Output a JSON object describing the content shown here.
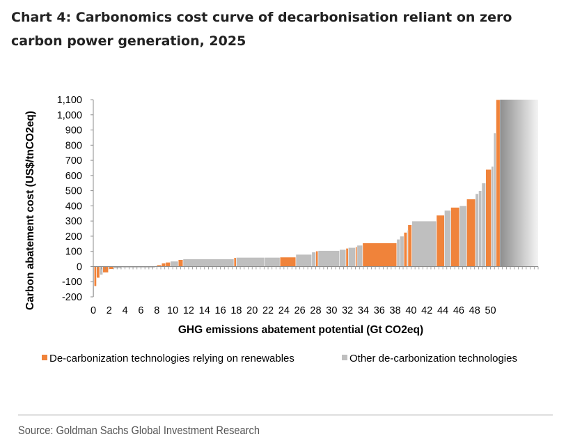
{
  "title": "Chart 4: Carbonomics cost curve of decarbonisation reliant on zero carbon power generation, 2025",
  "source": "Source: Goldman Sachs Global Investment Research",
  "colors": {
    "renewables": "#f0833a",
    "other": "#bfbfbf",
    "axis": "#8c8c8c",
    "text": "#000000"
  },
  "chart_data": {
    "type": "bar",
    "subtype": "cost-curve",
    "title": "Carbonomics cost curve of decarbonisation reliant on zero carbon power generation, 2025",
    "xlabel": "GHG emissions abatement potential  (Gt CO2eq)",
    "ylabel": "Carbon abatement cost (US$/tnCO2eq)",
    "xlim": [
      0,
      56
    ],
    "ylim": [
      -200,
      1100
    ],
    "x_ticks": [
      "0",
      "2",
      "4",
      "6",
      "8",
      "10",
      "12",
      "14",
      "16",
      "18",
      "20",
      "22",
      "24",
      "26",
      "28",
      "30",
      "32",
      "34",
      "36",
      "38",
      "40",
      "42",
      "44",
      "46",
      "48",
      "50"
    ],
    "y_ticks": [
      "1,100",
      "1,000",
      "900",
      "800",
      "700",
      "600",
      "500",
      "400",
      "300",
      "200",
      "100",
      "0",
      "-100",
      "-200"
    ],
    "y_tick_values": [
      1100,
      1000,
      900,
      800,
      700,
      600,
      500,
      400,
      300,
      200,
      100,
      0,
      -100,
      -200
    ],
    "legend": [
      "De-carbonization technologies relying on renewables",
      "Other de-carbonization technologies"
    ],
    "legend_position": "bottom",
    "series": [
      {
        "name": "renewables",
        "bars": [
          [
            0.1,
            0.4,
            -130
          ],
          [
            0.4,
            0.8,
            -75
          ],
          [
            1.2,
            1.9,
            -40
          ],
          [
            2.0,
            2.6,
            -18
          ],
          [
            8.0,
            8.6,
            10
          ],
          [
            8.6,
            9.1,
            22
          ],
          [
            9.1,
            9.7,
            28
          ],
          [
            10.7,
            11.3,
            45
          ],
          [
            17.7,
            18.0,
            58
          ],
          [
            23.5,
            25.5,
            62
          ],
          [
            28.0,
            28.3,
            102
          ],
          [
            31.8,
            32.1,
            120
          ],
          [
            33.0,
            33.2,
            130
          ],
          [
            33.9,
            38.2,
            155
          ],
          [
            39.1,
            39.5,
            225
          ],
          [
            39.6,
            40.1,
            275
          ],
          [
            43.2,
            44.2,
            338
          ],
          [
            45.0,
            46.1,
            390
          ],
          [
            47.0,
            48.1,
            445
          ],
          [
            49.4,
            50.1,
            640
          ],
          [
            50.7,
            51.2,
            1100
          ]
        ]
      },
      {
        "name": "other",
        "bars": [
          [
            0.0,
            0.1,
            -200
          ],
          [
            0.8,
            1.2,
            -55
          ],
          [
            2.6,
            3.6,
            -13
          ],
          [
            3.6,
            7.8,
            -8
          ],
          [
            7.8,
            8.0,
            5
          ],
          [
            9.7,
            10.7,
            35
          ],
          [
            11.3,
            17.7,
            50
          ],
          [
            18.0,
            21.5,
            60
          ],
          [
            21.5,
            23.5,
            60
          ],
          [
            25.5,
            27.5,
            80
          ],
          [
            27.5,
            28.0,
            95
          ],
          [
            28.3,
            31.0,
            105
          ],
          [
            31.0,
            31.8,
            112
          ],
          [
            32.1,
            33.0,
            125
          ],
          [
            33.2,
            33.9,
            140
          ],
          [
            38.2,
            38.6,
            180
          ],
          [
            38.6,
            39.1,
            200
          ],
          [
            39.5,
            39.6,
            240
          ],
          [
            40.1,
            43.2,
            300
          ],
          [
            44.2,
            45.0,
            370
          ],
          [
            46.1,
            47.0,
            400
          ],
          [
            48.1,
            48.5,
            480
          ],
          [
            48.5,
            48.9,
            500
          ],
          [
            48.9,
            49.4,
            550
          ],
          [
            50.1,
            50.4,
            660
          ],
          [
            50.4,
            50.7,
            880
          ],
          [
            51.2,
            56.0,
            1100
          ]
        ]
      }
    ]
  }
}
